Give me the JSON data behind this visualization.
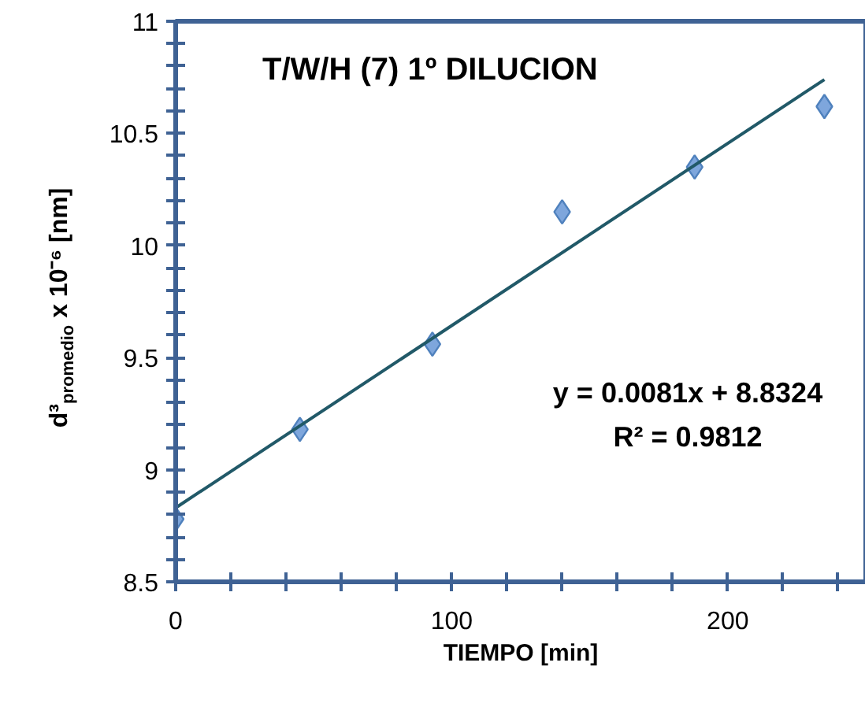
{
  "chart_data": {
    "type": "scatter",
    "title": "T/W/H (7) 1º DILUCION",
    "xlabel": "TIEMPO [min]",
    "ylabel": "d³$_{promedio}$ x 10⁻⁶ [nm]",
    "x": [
      0,
      45,
      93,
      140,
      188,
      235
    ],
    "series": [
      {
        "color": "#7ea6dc",
        "marker": "diamond",
        "values": [
          8.78,
          9.18,
          9.56,
          10.15,
          10.35,
          10.62
        ]
      },
      {
        "type": "line",
        "color": "#215968",
        "x": [
          0,
          235
        ],
        "values": [
          8.83,
          10.74
        ],
        "marker": "none",
        "line_style": "solid"
      }
    ],
    "annotations": [
      "y = 0.0081x + 8.8324",
      "R² = 0.9812"
    ],
    "xlim": [
      0,
      250
    ],
    "xticks": [
      0,
      100,
      200
    ],
    "ylim": [
      8.5,
      11
    ],
    "yticks": [
      8.5,
      9,
      9.5,
      10,
      10.5,
      11
    ],
    "grid": false
  }
}
